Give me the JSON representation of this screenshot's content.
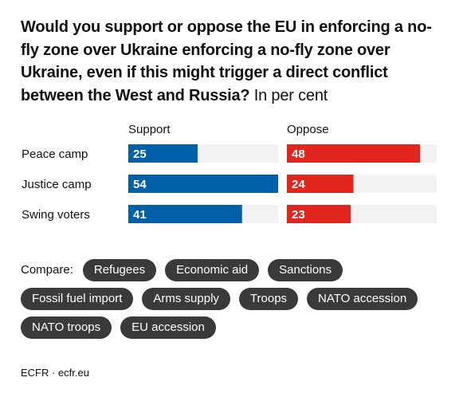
{
  "title": {
    "question": "Would you support or oppose the EU in enforcing a no-fly zone over Ukraine enforcing a no-fly zone over Ukraine, even if this might trigger a direct conflict between the West and Russia?",
    "unit": "In per cent"
  },
  "chart_data": {
    "type": "bar",
    "orientation": "horizontal",
    "categories": [
      "Peace camp",
      "Justice camp",
      "Swing voters"
    ],
    "series": [
      {
        "name": "Support",
        "values": [
          25,
          54,
          41
        ],
        "color": "#0060aa"
      },
      {
        "name": "Oppose",
        "values": [
          48,
          24,
          23
        ],
        "color": "#e2261d"
      }
    ],
    "xlim": [
      0,
      54
    ],
    "track_color": "#f2f2f2",
    "grid": false,
    "legend": "column headers"
  },
  "compare": {
    "label": "Compare:",
    "options": [
      "Refugees",
      "Economic aid",
      "Sanctions",
      "Fossil fuel import",
      "Arms supply",
      "Troops",
      "NATO accession",
      "NATO troops",
      "EU accession"
    ]
  },
  "source": "ECFR · ecfr.eu"
}
